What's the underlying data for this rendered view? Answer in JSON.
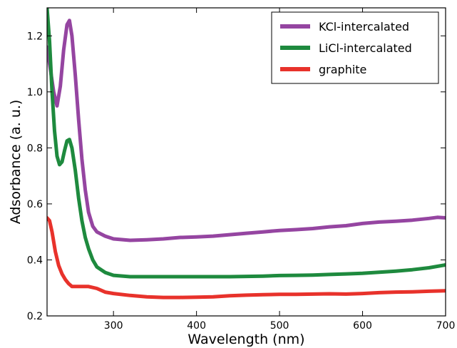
{
  "chart_data": {
    "type": "line",
    "xlabel": "Wavelength (nm)",
    "ylabel": "Adsorbance (a. u.)",
    "xlim": [
      220,
      700
    ],
    "ylim": [
      0.2,
      1.3
    ],
    "xticks": [
      300,
      400,
      500,
      600,
      700
    ],
    "yticks": [
      0.2,
      0.4,
      0.6,
      0.8,
      1.0,
      1.2
    ],
    "xtick_labels": [
      "300",
      "400",
      "500",
      "600",
      "700"
    ],
    "ytick_labels": [
      "0.2",
      "0.4",
      "0.6",
      "0.8",
      "1.0",
      "1.2"
    ],
    "grid": false,
    "legend_position": "top-right",
    "series": [
      {
        "name": "KCl-intercalated",
        "color": "#9545a1",
        "points": [
          [
            220,
            1.16
          ],
          [
            224,
            1.08
          ],
          [
            228,
            1.0
          ],
          [
            232,
            0.95
          ],
          [
            236,
            1.02
          ],
          [
            240,
            1.15
          ],
          [
            244,
            1.24
          ],
          [
            247,
            1.255
          ],
          [
            250,
            1.2
          ],
          [
            254,
            1.06
          ],
          [
            258,
            0.9
          ],
          [
            262,
            0.76
          ],
          [
            266,
            0.65
          ],
          [
            270,
            0.57
          ],
          [
            275,
            0.52
          ],
          [
            280,
            0.5
          ],
          [
            290,
            0.485
          ],
          [
            300,
            0.475
          ],
          [
            320,
            0.47
          ],
          [
            340,
            0.472
          ],
          [
            360,
            0.475
          ],
          [
            380,
            0.48
          ],
          [
            400,
            0.482
          ],
          [
            420,
            0.485
          ],
          [
            440,
            0.49
          ],
          [
            460,
            0.495
          ],
          [
            480,
            0.5
          ],
          [
            500,
            0.505
          ],
          [
            520,
            0.508
          ],
          [
            540,
            0.512
          ],
          [
            560,
            0.518
          ],
          [
            580,
            0.522
          ],
          [
            600,
            0.53
          ],
          [
            620,
            0.535
          ],
          [
            640,
            0.538
          ],
          [
            660,
            0.542
          ],
          [
            680,
            0.548
          ],
          [
            690,
            0.552
          ],
          [
            700,
            0.55
          ]
        ]
      },
      {
        "name": "LiCl-intercalated",
        "color": "#1e8a3e",
        "points": [
          [
            220,
            1.3
          ],
          [
            223,
            1.18
          ],
          [
            226,
            1.0
          ],
          [
            229,
            0.86
          ],
          [
            232,
            0.77
          ],
          [
            235,
            0.74
          ],
          [
            238,
            0.75
          ],
          [
            241,
            0.79
          ],
          [
            244,
            0.825
          ],
          [
            247,
            0.83
          ],
          [
            250,
            0.8
          ],
          [
            254,
            0.72
          ],
          [
            258,
            0.62
          ],
          [
            262,
            0.54
          ],
          [
            266,
            0.48
          ],
          [
            270,
            0.44
          ],
          [
            275,
            0.4
          ],
          [
            280,
            0.375
          ],
          [
            290,
            0.355
          ],
          [
            300,
            0.345
          ],
          [
            320,
            0.34
          ],
          [
            340,
            0.34
          ],
          [
            360,
            0.34
          ],
          [
            380,
            0.34
          ],
          [
            400,
            0.34
          ],
          [
            420,
            0.34
          ],
          [
            440,
            0.34
          ],
          [
            460,
            0.341
          ],
          [
            480,
            0.342
          ],
          [
            500,
            0.344
          ],
          [
            520,
            0.345
          ],
          [
            540,
            0.346
          ],
          [
            560,
            0.348
          ],
          [
            580,
            0.35
          ],
          [
            600,
            0.352
          ],
          [
            620,
            0.356
          ],
          [
            640,
            0.36
          ],
          [
            660,
            0.365
          ],
          [
            680,
            0.372
          ],
          [
            700,
            0.382
          ]
        ]
      },
      {
        "name": "graphite",
        "color": "#e8322b",
        "points": [
          [
            220,
            0.55
          ],
          [
            223,
            0.54
          ],
          [
            226,
            0.5
          ],
          [
            230,
            0.43
          ],
          [
            234,
            0.38
          ],
          [
            238,
            0.35
          ],
          [
            242,
            0.33
          ],
          [
            246,
            0.315
          ],
          [
            250,
            0.305
          ],
          [
            260,
            0.305
          ],
          [
            270,
            0.305
          ],
          [
            280,
            0.298
          ],
          [
            290,
            0.285
          ],
          [
            300,
            0.28
          ],
          [
            320,
            0.273
          ],
          [
            340,
            0.268
          ],
          [
            360,
            0.266
          ],
          [
            380,
            0.266
          ],
          [
            400,
            0.267
          ],
          [
            420,
            0.268
          ],
          [
            440,
            0.272
          ],
          [
            460,
            0.274
          ],
          [
            480,
            0.276
          ],
          [
            500,
            0.277
          ],
          [
            520,
            0.277
          ],
          [
            540,
            0.278
          ],
          [
            560,
            0.279
          ],
          [
            580,
            0.278
          ],
          [
            600,
            0.28
          ],
          [
            620,
            0.283
          ],
          [
            640,
            0.285
          ],
          [
            660,
            0.286
          ],
          [
            680,
            0.288
          ],
          [
            700,
            0.29
          ]
        ]
      }
    ]
  }
}
